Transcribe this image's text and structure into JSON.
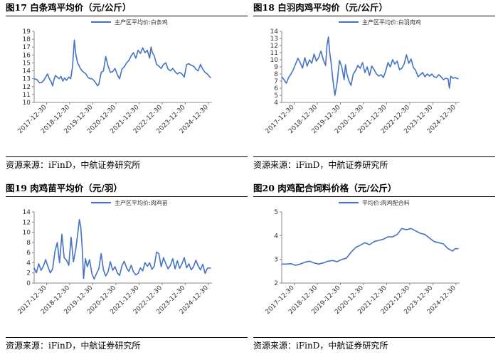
{
  "source_label": "资源来源：iFinD，中航证券研究所",
  "line_color": "#4472C4",
  "chart_data": [
    {
      "type": "line",
      "title": "图17  白条鸡平均价（元/公斤）",
      "legend": "主产区平均价:白条鸡",
      "legend_position": "top-center",
      "grid": false,
      "ylim": [
        10,
        19
      ],
      "yticks": [
        10,
        11,
        12,
        13,
        14,
        15,
        16,
        17,
        18,
        19
      ],
      "xlim": [
        2017.5,
        2025.2
      ],
      "xticks": [
        "2017-12-30",
        "2018-12-30",
        "2019-12-30",
        "2020-12-30",
        "2021-12-30",
        "2022-12-30",
        "2023-12-30",
        "2024-12-30"
      ],
      "series": [
        {
          "x": [
            2017.5,
            2017.62,
            2017.72,
            2017.82,
            2017.92,
            2018.0,
            2018.08,
            2018.16,
            2018.24,
            2018.3,
            2018.36,
            2018.42,
            2018.5,
            2018.58,
            2018.66,
            2018.74,
            2018.82,
            2018.9,
            2019.0,
            2019.08,
            2019.16,
            2019.24,
            2019.3,
            2019.34,
            2019.38,
            2019.44,
            2019.5,
            2019.58,
            2019.66,
            2019.74,
            2019.82,
            2019.92,
            2020.0,
            2020.08,
            2020.16,
            2020.24,
            2020.3,
            2020.4,
            2020.5,
            2020.6,
            2020.7,
            2020.8,
            2020.9,
            2021.0,
            2021.1,
            2021.2,
            2021.3,
            2021.4,
            2021.5,
            2021.6,
            2021.7,
            2021.8,
            2021.9,
            2022.0,
            2022.1,
            2022.2,
            2022.3,
            2022.4,
            2022.5,
            2022.56,
            2022.62,
            2022.7,
            2022.8,
            2022.9,
            2023.0,
            2023.1,
            2023.2,
            2023.3,
            2023.4,
            2023.5,
            2023.6,
            2023.7,
            2023.8,
            2023.9,
            2024.0,
            2024.1,
            2024.2,
            2024.3,
            2024.4,
            2024.5,
            2024.6,
            2024.7,
            2024.8,
            2024.9,
            2025.0,
            2025.08,
            2025.15
          ],
          "y": [
            13.0,
            12.9,
            12.5,
            12.5,
            12.8,
            13.2,
            13.6,
            13.0,
            12.6,
            12.1,
            12.9,
            13.4,
            13.2,
            13.0,
            13.3,
            12.7,
            13.1,
            12.8,
            13.2,
            13.0,
            14.5,
            17.9,
            16.2,
            15.6,
            15.0,
            14.7,
            14.3,
            14.0,
            13.8,
            13.6,
            13.2,
            13.0,
            13.0,
            12.8,
            12.5,
            12.1,
            12.3,
            13.8,
            14.0,
            15.8,
            14.6,
            13.8,
            13.9,
            14.3,
            13.5,
            13.0,
            14.2,
            14.5,
            15.0,
            15.3,
            15.9,
            16.3,
            15.6,
            16.6,
            16.2,
            16.9,
            16.3,
            16.6,
            15.6,
            17.0,
            16.3,
            15.9,
            14.8,
            14.6,
            14.3,
            14.8,
            15.0,
            14.2,
            14.0,
            14.3,
            13.9,
            13.6,
            13.8,
            13.6,
            13.2,
            14.8,
            14.9,
            14.7,
            14.6,
            14.2,
            14.0,
            14.8,
            14.2,
            13.8,
            13.6,
            13.3,
            13.1
          ]
        }
      ]
    },
    {
      "type": "line",
      "title": "图18  白羽肉鸡平均价（元/公斤）",
      "legend": "主产区平均价:白羽肉鸡",
      "legend_position": "top-center",
      "grid": false,
      "ylim": [
        4,
        14
      ],
      "yticks": [
        4,
        5,
        6,
        7,
        8,
        9,
        10,
        11,
        12,
        13,
        14
      ],
      "xlim": [
        2017.5,
        2025.2
      ],
      "xticks": [
        "2017-12-30",
        "2018-12-30",
        "2019-12-30",
        "2020-12-30",
        "2021-12-30",
        "2022-12-30",
        "2023-12-30",
        "2024-12-30"
      ],
      "series": [
        {
          "x": [
            2017.5,
            2017.6,
            2017.7,
            2017.8,
            2017.9,
            2018.0,
            2018.1,
            2018.2,
            2018.3,
            2018.4,
            2018.5,
            2018.6,
            2018.7,
            2018.8,
            2018.9,
            2019.0,
            2019.1,
            2019.2,
            2019.3,
            2019.4,
            2019.46,
            2019.52,
            2019.58,
            2019.64,
            2019.72,
            2019.8,
            2019.9,
            2020.0,
            2020.1,
            2020.2,
            2020.26,
            2020.32,
            2020.4,
            2020.5,
            2020.6,
            2020.7,
            2020.8,
            2020.9,
            2021.0,
            2021.1,
            2021.2,
            2021.3,
            2021.4,
            2021.5,
            2021.6,
            2021.7,
            2021.8,
            2021.9,
            2022.0,
            2022.1,
            2022.2,
            2022.3,
            2022.4,
            2022.5,
            2022.6,
            2022.7,
            2022.8,
            2022.9,
            2023.0,
            2023.1,
            2023.2,
            2023.3,
            2023.4,
            2023.5,
            2023.6,
            2023.7,
            2023.8,
            2023.9,
            2024.0,
            2024.1,
            2024.2,
            2024.3,
            2024.4,
            2024.5,
            2024.6,
            2024.7,
            2024.76,
            2024.82,
            2024.9,
            2025.0,
            2025.08,
            2025.15
          ],
          "y": [
            7.6,
            7.2,
            6.7,
            7.5,
            8.0,
            8.6,
            9.4,
            10.2,
            9.6,
            8.8,
            10.3,
            9.1,
            10.0,
            9.5,
            10.8,
            9.8,
            10.3,
            11.2,
            10.0,
            9.2,
            12.0,
            13.2,
            11.0,
            9.5,
            7.0,
            5.0,
            6.8,
            9.9,
            9.0,
            7.2,
            9.3,
            8.0,
            7.1,
            6.4,
            8.0,
            8.5,
            9.2,
            8.8,
            9.6,
            8.2,
            9.0,
            7.8,
            9.1,
            8.6,
            8.0,
            7.7,
            7.9,
            7.5,
            8.4,
            9.6,
            9.0,
            10.0,
            9.4,
            9.8,
            8.6,
            8.8,
            9.4,
            10.7,
            9.5,
            10.1,
            8.9,
            8.5,
            7.6,
            7.9,
            8.2,
            7.6,
            8.0,
            7.7,
            8.0,
            7.6,
            7.5,
            7.9,
            7.6,
            7.2,
            7.4,
            7.3,
            6.0,
            7.7,
            7.4,
            7.5,
            7.4,
            7.3
          ]
        }
      ]
    },
    {
      "type": "line",
      "title": "图19  肉鸡苗平均价（元/羽）",
      "legend": "主产区平均价:肉鸡苗",
      "legend_position": "top-center",
      "grid": false,
      "ylim": [
        0,
        14
      ],
      "yticks": [
        0,
        2,
        4,
        6,
        8,
        10,
        12,
        14
      ],
      "xlim": [
        2017.5,
        2025.2
      ],
      "xticks": [
        "2017-12-30",
        "2018-12-30",
        "2019-12-30",
        "2020-12-30",
        "2021-12-30",
        "2022-12-30",
        "2023-12-30",
        "2024-12-30"
      ],
      "series": [
        {
          "x": [
            2017.5,
            2017.6,
            2017.7,
            2017.8,
            2017.9,
            2018.0,
            2018.1,
            2018.2,
            2018.3,
            2018.4,
            2018.5,
            2018.6,
            2018.7,
            2018.8,
            2018.9,
            2019.0,
            2019.1,
            2019.2,
            2019.3,
            2019.4,
            2019.46,
            2019.52,
            2019.58,
            2019.64,
            2019.72,
            2019.8,
            2019.9,
            2020.0,
            2020.1,
            2020.2,
            2020.3,
            2020.4,
            2020.5,
            2020.6,
            2020.7,
            2020.8,
            2020.9,
            2021.0,
            2021.1,
            2021.2,
            2021.3,
            2021.4,
            2021.5,
            2021.6,
            2021.7,
            2021.8,
            2021.9,
            2022.0,
            2022.1,
            2022.2,
            2022.3,
            2022.4,
            2022.5,
            2022.6,
            2022.7,
            2022.8,
            2022.9,
            2023.0,
            2023.1,
            2023.2,
            2023.3,
            2023.4,
            2023.5,
            2023.6,
            2023.7,
            2023.8,
            2023.9,
            2024.0,
            2024.1,
            2024.2,
            2024.3,
            2024.4,
            2024.5,
            2024.6,
            2024.7,
            2024.8,
            2024.9,
            2025.0,
            2025.08,
            2025.15
          ],
          "y": [
            3.0,
            2.0,
            3.8,
            2.5,
            3.3,
            4.6,
            3.2,
            2.0,
            2.8,
            6.2,
            8.0,
            4.0,
            9.6,
            5.0,
            4.5,
            3.5,
            9.0,
            4.2,
            6.6,
            10.2,
            12.5,
            11.0,
            7.0,
            0.9,
            4.8,
            3.2,
            4.6,
            1.8,
            0.8,
            1.9,
            2.8,
            5.8,
            2.6,
            1.4,
            2.2,
            4.2,
            2.5,
            3.2,
            2.0,
            1.5,
            3.4,
            4.3,
            3.0,
            2.3,
            3.5,
            2.2,
            1.6,
            1.9,
            3.0,
            2.4,
            4.0,
            3.3,
            4.0,
            2.7,
            3.3,
            6.1,
            5.8,
            3.2,
            5.0,
            3.8,
            2.8,
            3.5,
            4.8,
            2.8,
            4.4,
            2.9,
            3.8,
            5.0,
            3.0,
            3.8,
            2.6,
            3.2,
            4.5,
            3.4,
            2.6,
            3.7,
            1.9,
            2.9,
            3.0,
            2.9
          ]
        }
      ]
    },
    {
      "type": "line",
      "title": "图20  肉鸡配合饲料价格（元/公斤）",
      "legend": "平均价:肉鸡配合料",
      "legend_position": "top-center",
      "grid": false,
      "ylim": [
        2,
        5
      ],
      "yticks": [
        2,
        3,
        4,
        5
      ],
      "xlim": [
        2017.5,
        2025.2
      ],
      "xticks": [
        "2017-12-30",
        "2018-12-30",
        "2019-12-30",
        "2020-12-30",
        "2021-12-30",
        "2022-12-30",
        "2023-12-30",
        "2024-12-30"
      ],
      "series": [
        {
          "x": [
            2017.5,
            2017.7,
            2017.9,
            2018.1,
            2018.3,
            2018.5,
            2018.7,
            2018.9,
            2019.1,
            2019.3,
            2019.5,
            2019.7,
            2019.9,
            2020.1,
            2020.3,
            2020.5,
            2020.7,
            2020.9,
            2021.1,
            2021.3,
            2021.5,
            2021.7,
            2021.9,
            2022.1,
            2022.3,
            2022.5,
            2022.7,
            2022.9,
            2023.1,
            2023.3,
            2023.5,
            2023.7,
            2023.9,
            2024.1,
            2024.3,
            2024.5,
            2024.7,
            2024.9,
            2025.0,
            2025.15
          ],
          "y": [
            2.8,
            2.8,
            2.82,
            2.75,
            2.8,
            2.88,
            2.92,
            2.85,
            2.8,
            2.85,
            2.92,
            2.95,
            2.9,
            3.0,
            3.05,
            3.3,
            3.5,
            3.6,
            3.7,
            3.62,
            3.75,
            3.8,
            3.85,
            3.95,
            3.95,
            4.05,
            4.3,
            4.25,
            4.3,
            4.2,
            4.1,
            4.05,
            3.9,
            3.75,
            3.7,
            3.65,
            3.45,
            3.35,
            3.45,
            3.45
          ]
        }
      ]
    }
  ]
}
